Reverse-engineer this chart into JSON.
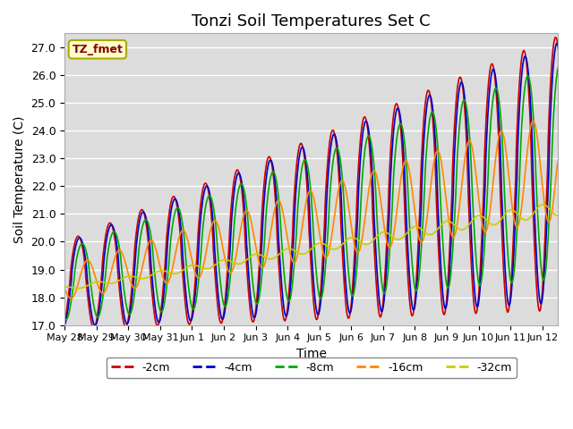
{
  "title": "Tonzi Soil Temperatures Set C",
  "xlabel": "Time",
  "ylabel": "Soil Temperature (C)",
  "ylim": [
    17.0,
    27.5
  ],
  "yticks": [
    17.0,
    18.0,
    19.0,
    20.0,
    21.0,
    22.0,
    23.0,
    24.0,
    25.0,
    26.0,
    27.0
  ],
  "bg_color": "#dcdcdc",
  "fig_color": "#ffffff",
  "legend_label": "TZ_fmet",
  "legend_box_color": "#ffffcc",
  "legend_box_edge": "#aaaa00",
  "series": {
    "-2cm": {
      "color": "#cc0000",
      "lw": 1.2
    },
    "-4cm": {
      "color": "#0000cc",
      "lw": 1.2
    },
    "-8cm": {
      "color": "#00aa00",
      "lw": 1.2
    },
    "-16cm": {
      "color": "#ff8800",
      "lw": 1.2
    },
    "-32cm": {
      "color": "#cccc00",
      "lw": 1.2
    }
  },
  "total_days": 15.5,
  "xtick_labels": [
    "May 28",
    "May 29",
    "May 30",
    "May 31",
    "Jun 1",
    "Jun 2",
    "Jun 3",
    "Jun 4",
    "Jun 5",
    "Jun 6",
    "Jun 7",
    "Jun 8",
    "Jun 9",
    "Jun 10",
    "Jun 11",
    "Jun 12"
  ],
  "num_points": 744
}
